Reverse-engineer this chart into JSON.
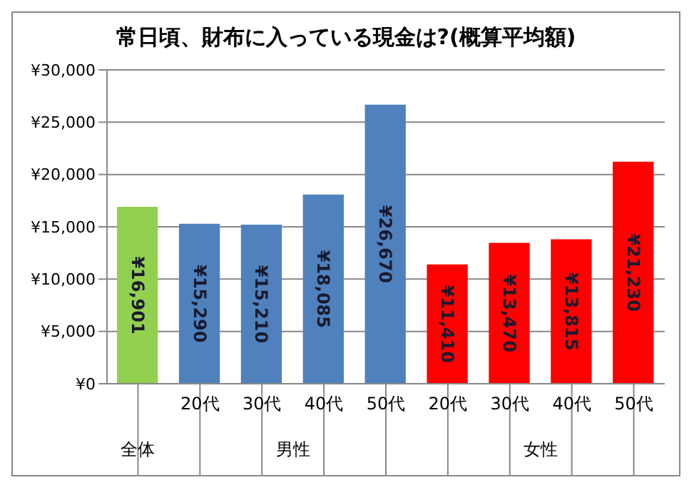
{
  "chart_data": {
    "type": "bar",
    "title": "常日頃、財布に入っている現金は?(概算平均額)",
    "categories": [
      null,
      "20代",
      "30代",
      "40代",
      "50代",
      "20代",
      "30代",
      "40代",
      "50代"
    ],
    "annotations": [
      "全体",
      "男性",
      "女性"
    ],
    "values": [
      16901,
      15290,
      15210,
      18085,
      26670,
      11410,
      13470,
      13815,
      21230
    ],
    "colors": [
      "#92d050",
      "#4f81bd",
      "#4f81bd",
      "#4f81bd",
      "#4f81bd",
      "#ff0000",
      "#ff0000",
      "#ff0000",
      "#ff0000"
    ],
    "value_labels": [
      "¥16,901",
      "¥15,290",
      "¥15,210",
      "¥18,085",
      "¥26,670",
      "¥11,410",
      "¥13,470",
      "¥13,815",
      "¥21,230"
    ],
    "ylim": [
      0,
      30000
    ],
    "yticks": [
      {
        "value": 0,
        "label": "¥0"
      },
      {
        "value": 5000,
        "label": "¥5,000"
      },
      {
        "value": 10000,
        "label": "¥10,000"
      },
      {
        "value": 15000,
        "label": "¥15,000"
      },
      {
        "value": 20000,
        "label": "¥20,000"
      },
      {
        "value": 25000,
        "label": "¥25,000"
      },
      {
        "value": 30000,
        "label": "¥30,000"
      }
    ],
    "grid": "y",
    "legend": false
  }
}
